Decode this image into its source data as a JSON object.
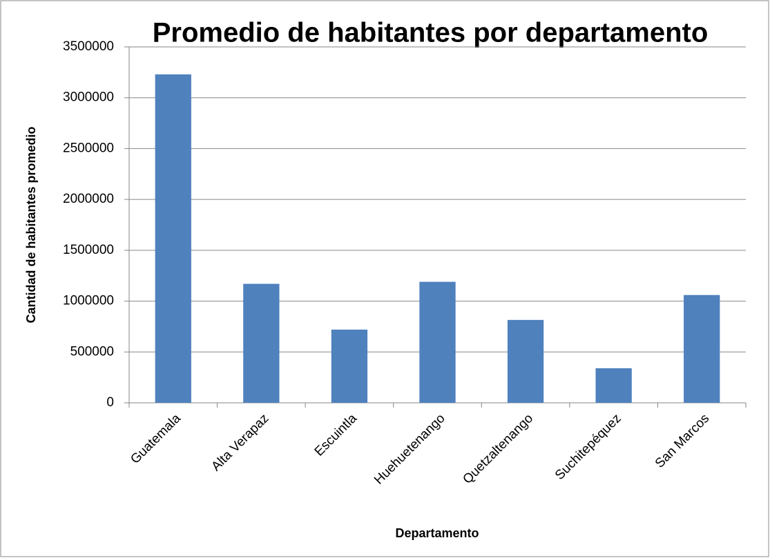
{
  "chart_data": {
    "type": "bar",
    "title": "Promedio de habitantes por departamento",
    "x_label": "Departamento",
    "y_label": "Cantidad de habitantes promedio",
    "categories": [
      "Guatemala",
      "Alta Verapaz",
      "Escuintla",
      "Huehuetenango",
      "Quetzaltenango",
      "Suchitepéquez",
      "San Marcos"
    ],
    "values": [
      3230000,
      1170000,
      720000,
      1190000,
      815000,
      340000,
      1060000
    ],
    "color": "#4f81bd",
    "ylim": [
      0,
      3500000
    ],
    "yticks": [
      0,
      500000,
      1000000,
      1500000,
      2000000,
      2500000,
      3000000,
      3500000
    ],
    "grid": true
  }
}
